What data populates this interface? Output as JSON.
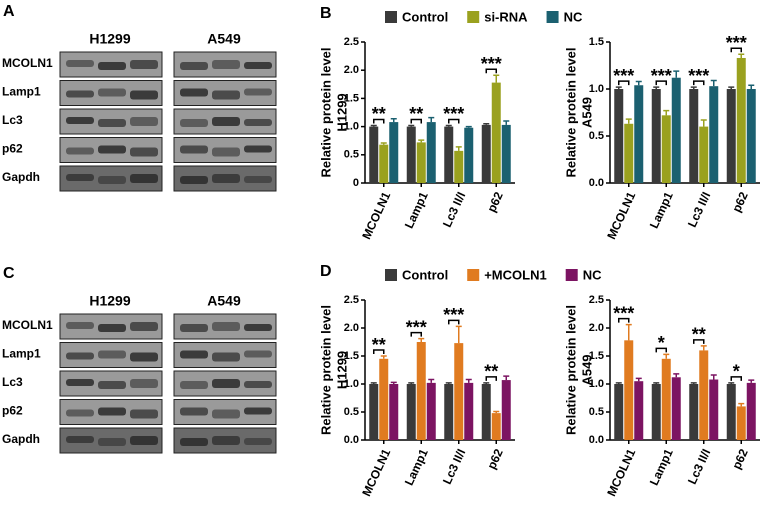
{
  "blots": [
    {
      "panel": "A",
      "cell_lines": [
        "H1299",
        "A549"
      ],
      "rows": [
        "MCOLN1",
        "Lamp1",
        "Lc3",
        "p62",
        "Gapdh"
      ]
    },
    {
      "panel": "C",
      "cell_lines": [
        "H1299",
        "A549"
      ],
      "rows": [
        "MCOLN1",
        "Lamp1",
        "Lc3",
        "p62",
        "Gapdh"
      ]
    }
  ],
  "chart_data": [
    {
      "type": "bar",
      "panel": "B",
      "legend": true,
      "row_label": "H1299",
      "ylabel": "Relative protein level",
      "categories": [
        "MCOLN1",
        "Lamp1",
        "Lc3 II/I",
        "p62"
      ],
      "series": [
        {
          "name": "Control",
          "color": "#3a3a3a",
          "values": [
            1.0,
            1.0,
            1.0,
            1.03
          ],
          "errors": [
            0.02,
            0.02,
            0.02,
            0.02
          ]
        },
        {
          "name": "si-RNA",
          "color": "#9aa11f",
          "values": [
            0.68,
            0.72,
            0.57,
            1.78
          ],
          "errors": [
            0.03,
            0.04,
            0.07,
            0.13
          ]
        },
        {
          "name": "NC",
          "color": "#1b6070",
          "values": [
            1.08,
            1.08,
            0.98,
            1.03
          ],
          "errors": [
            0.06,
            0.08,
            0.02,
            0.07
          ]
        }
      ],
      "significance": [
        "**",
        "**",
        "***",
        "***"
      ],
      "ylim": [
        0,
        2.5
      ],
      "yticks": [
        0,
        0.5,
        {
          "value": 1,
          "label": "1.0"
        },
        1.5,
        {
          "value": 2,
          "label": "2.0"
        },
        2.5
      ]
    },
    {
      "type": "bar",
      "row_label": "A549",
      "ylabel": "Relative protein level",
      "categories": [
        "MCOLN1",
        "Lamp1",
        "Lc3 II/I",
        "p62"
      ],
      "series": [
        {
          "color": "#3a3a3a",
          "values": [
            1.0,
            1.0,
            1.0,
            1.0
          ],
          "errors": [
            0.02,
            0.02,
            0.02,
            0.02
          ]
        },
        {
          "color": "#9aa11f",
          "values": [
            0.63,
            0.72,
            0.6,
            1.33
          ],
          "errors": [
            0.05,
            0.05,
            0.07,
            0.04
          ]
        },
        {
          "color": "#1b6070",
          "values": [
            1.04,
            1.12,
            1.03,
            1.0
          ],
          "errors": [
            0.04,
            0.07,
            0.06,
            0.04
          ]
        }
      ],
      "significance": [
        "***",
        "***",
        "***",
        "***"
      ],
      "ylim": [
        0,
        1.5
      ],
      "yticks": [
        {
          "value": 0,
          "label": "0.0"
        },
        0.5,
        {
          "value": 1,
          "label": "1.0"
        },
        1.5
      ]
    },
    {
      "type": "bar",
      "panel": "D",
      "legend": true,
      "row_label": "H1299",
      "ylabel": "Relative protein level",
      "categories": [
        "MCOLN1",
        "Lamp1",
        "Lc3 II/I",
        "p62"
      ],
      "series": [
        {
          "name": "Control",
          "color": "#3a3a3a",
          "values": [
            1.0,
            1.0,
            1.0,
            1.0
          ],
          "errors": [
            0.02,
            0.02,
            0.02,
            0.02
          ]
        },
        {
          "name": "+MCOLN1",
          "color": "#e07b20",
          "values": [
            1.45,
            1.75,
            1.73,
            0.48
          ],
          "errors": [
            0.05,
            0.06,
            0.3,
            0.03
          ]
        },
        {
          "name": "NC",
          "color": "#7c1462",
          "values": [
            1.0,
            1.02,
            1.02,
            1.07
          ],
          "errors": [
            0.03,
            0.06,
            0.06,
            0.07
          ]
        }
      ],
      "significance": [
        "**",
        "***",
        "***",
        "**"
      ],
      "ylim": [
        0,
        2.5
      ],
      "yticks": [
        {
          "value": 0,
          "label": "0.0"
        },
        0.5,
        {
          "value": 1,
          "label": "1.0"
        },
        1.5,
        {
          "value": 2,
          "label": "2.0"
        },
        2.5
      ]
    },
    {
      "type": "bar",
      "row_label": "A549",
      "ylabel": "Relative protein level",
      "categories": [
        "MCOLN1",
        "Lamp1",
        "Lc3 II/I",
        "p62"
      ],
      "series": [
        {
          "color": "#3a3a3a",
          "values": [
            1.0,
            1.0,
            1.0,
            1.0
          ],
          "errors": [
            0.02,
            0.02,
            0.02,
            0.02
          ]
        },
        {
          "color": "#e07b20",
          "values": [
            1.78,
            1.45,
            1.6,
            0.6
          ],
          "errors": [
            0.28,
            0.08,
            0.08,
            0.05
          ]
        },
        {
          "color": "#7c1462",
          "values": [
            1.05,
            1.12,
            1.08,
            1.02
          ],
          "errors": [
            0.05,
            0.06,
            0.08,
            0.05
          ]
        }
      ],
      "significance": [
        "***",
        "*",
        "**",
        "*"
      ],
      "ylim": [
        0,
        2.5
      ],
      "yticks": [
        {
          "value": 0,
          "label": "0.0"
        },
        0.5,
        {
          "value": 1,
          "label": "1.0"
        },
        1.5,
        {
          "value": 2,
          "label": "2.0"
        },
        2.5
      ]
    }
  ]
}
